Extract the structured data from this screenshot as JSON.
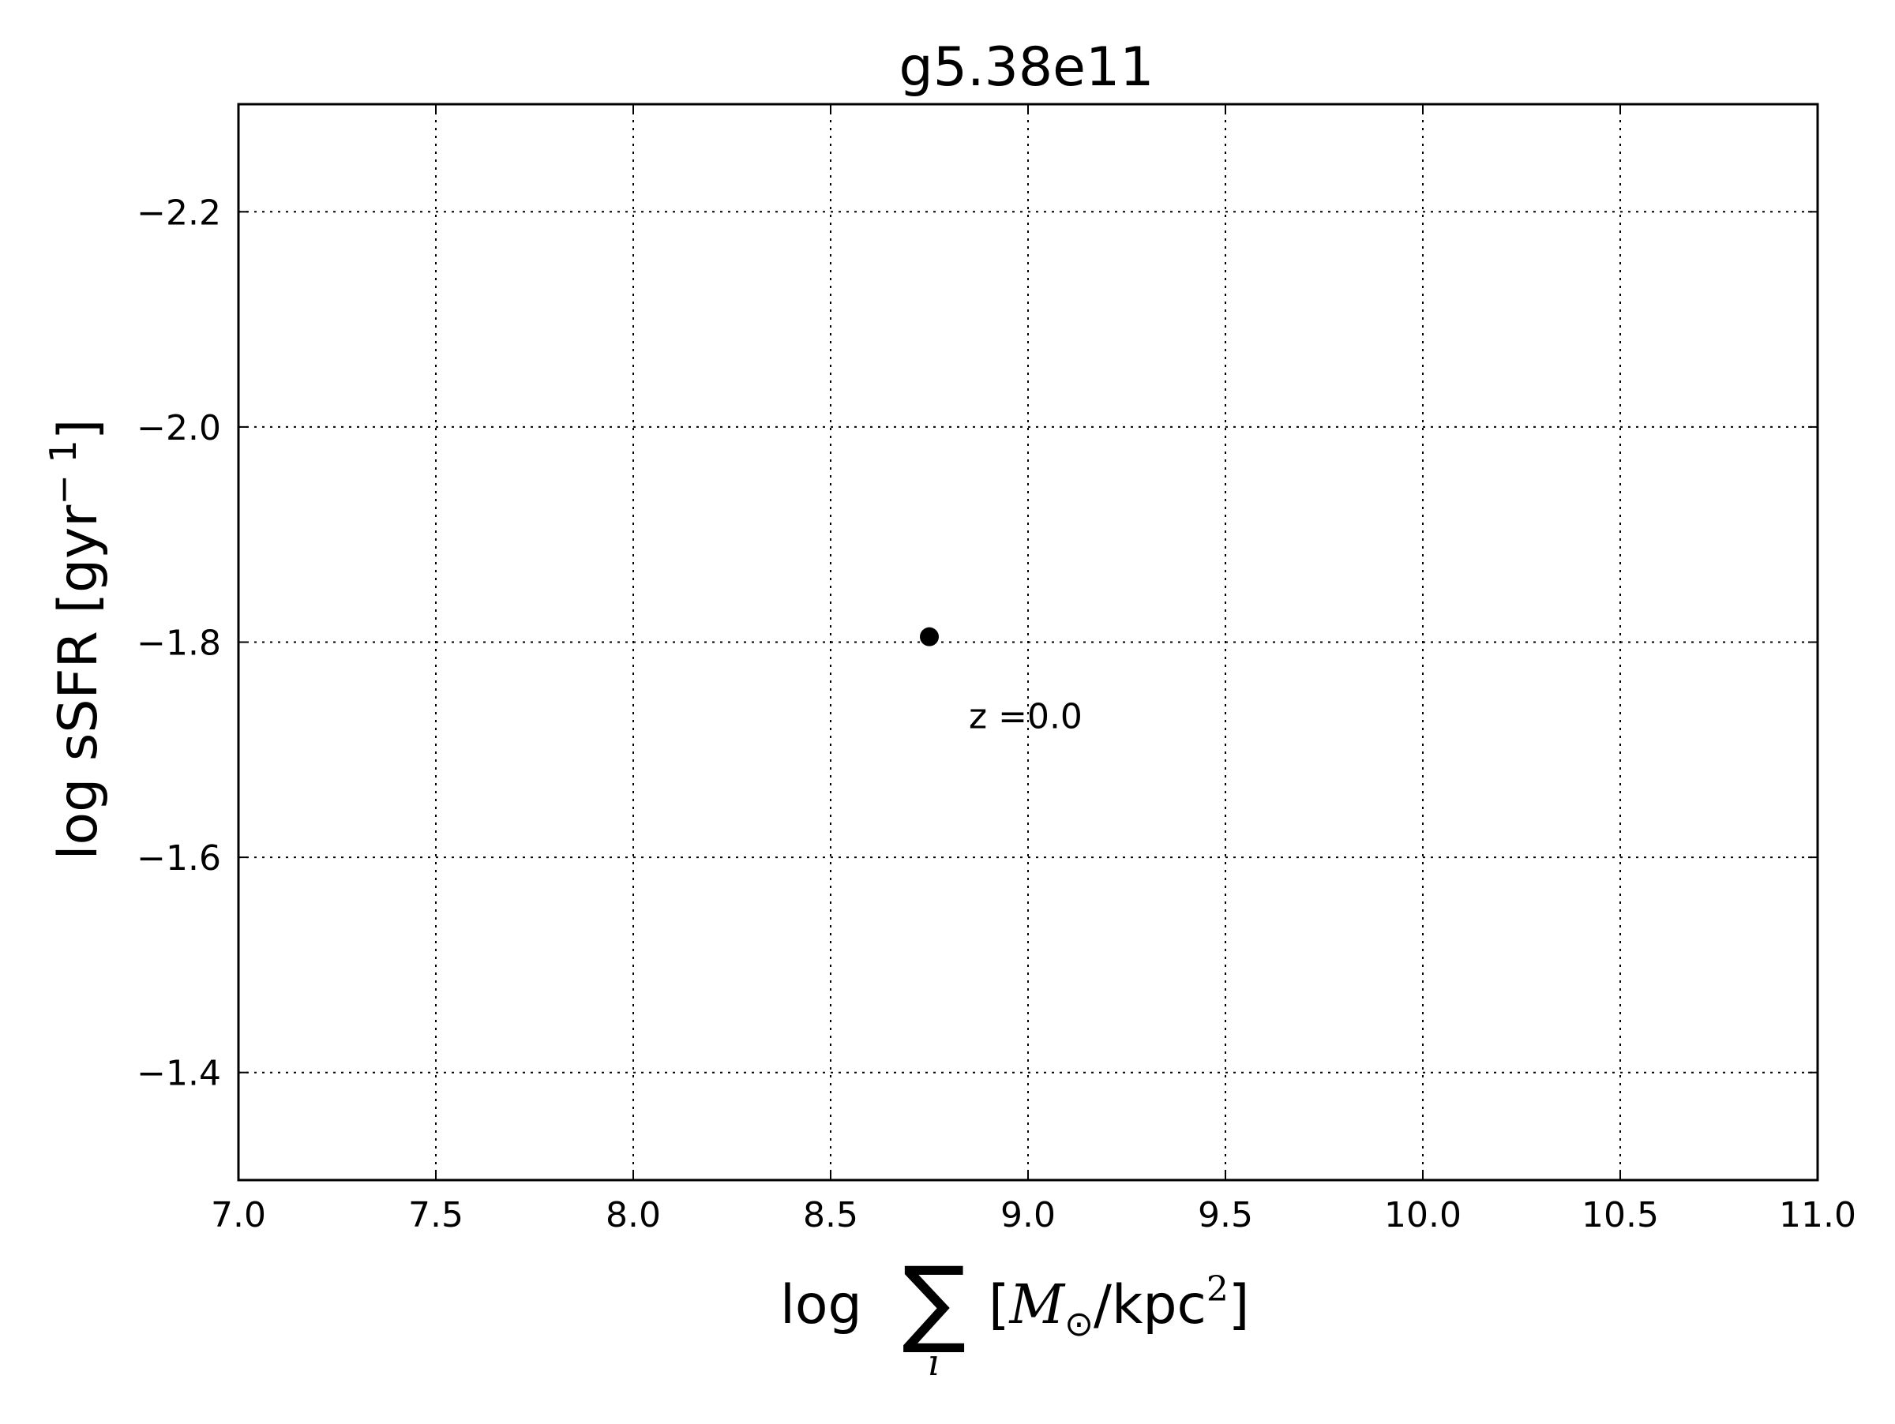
{
  "chart_data": {
    "type": "scatter",
    "title": "g5.38e11",
    "xlabel": {
      "prefix": "log",
      "sum_symbol": "∑",
      "sum_index": "i",
      "bracket_open": "[",
      "mass_symbol": "M",
      "mass_subscript": "⊙",
      "unit": "/kpc",
      "unit_exponent": "2",
      "bracket_close": "]"
    },
    "ylabel": {
      "text": "log sSFR [gyr",
      "exponent": "− 1",
      "close": "]"
    },
    "xlim": [
      7.0,
      11.0
    ],
    "ylim": [
      -1.3,
      -2.3
    ],
    "y_inverted": true,
    "x_ticks": [
      7.0,
      7.5,
      8.0,
      8.5,
      9.0,
      9.5,
      10.0,
      10.5,
      11.0
    ],
    "x_tick_labels": [
      "7.0",
      "7.5",
      "8.0",
      "8.5",
      "9.0",
      "9.5",
      "10.0",
      "10.5",
      "11.0"
    ],
    "y_ticks": [
      -2.2,
      -2.0,
      -1.8,
      -1.6,
      -1.4
    ],
    "y_tick_labels": [
      "−2.2",
      "−2.0",
      "−1.8",
      "−1.6",
      "−1.4"
    ],
    "grid": true,
    "grid_style": "dotted",
    "points": [
      {
        "x": 8.75,
        "y": -1.805
      }
    ],
    "annotations": [
      {
        "text": "z =0.0",
        "x": 8.85,
        "y": -1.72
      }
    ],
    "marker_color": "#000000"
  }
}
